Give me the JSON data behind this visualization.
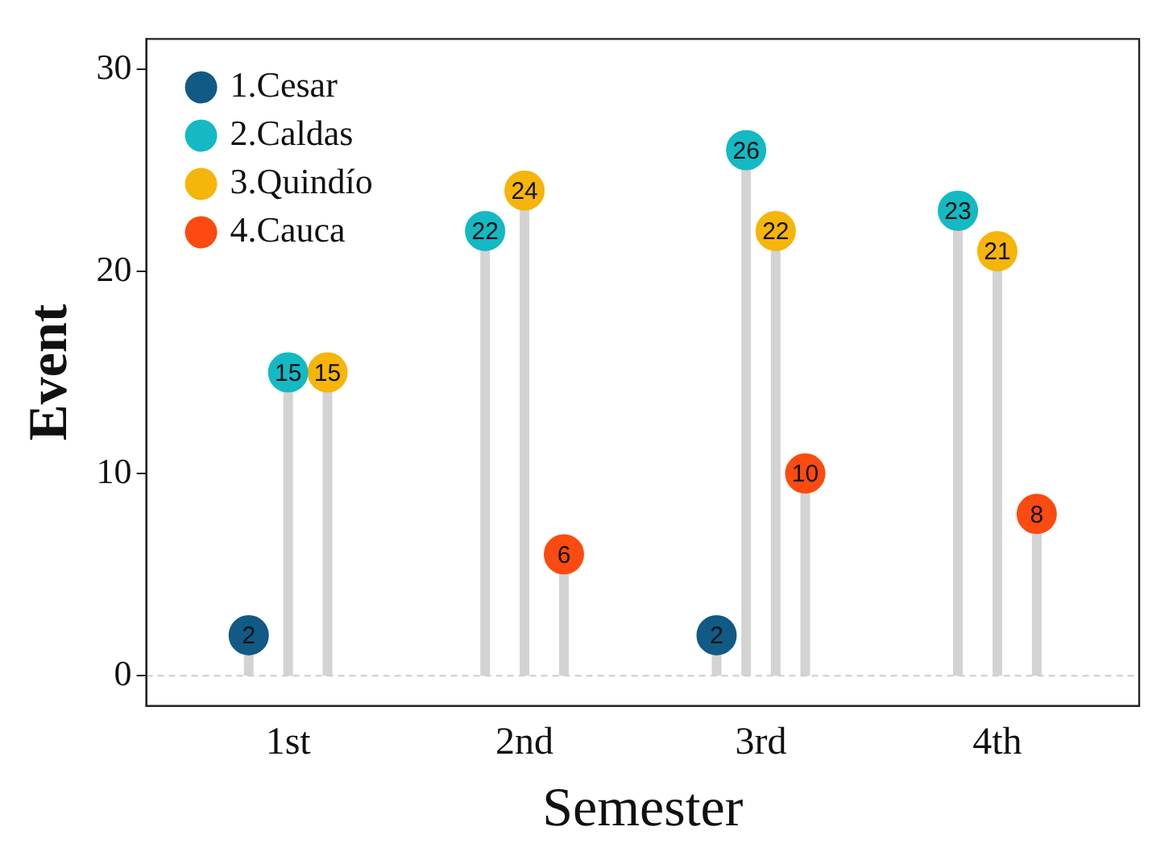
{
  "chart_data": {
    "type": "lollipop",
    "xlabel": "Semester",
    "ylabel": "Event",
    "categories": [
      "1st",
      "2nd",
      "3rd",
      "4th"
    ],
    "series": [
      {
        "name": "1.Cesar",
        "color": "#105a85",
        "values": [
          2,
          null,
          2,
          null
        ]
      },
      {
        "name": "2.Caldas",
        "color": "#14b9c4",
        "values": [
          15,
          22,
          26,
          23
        ]
      },
      {
        "name": "3.Quindío",
        "color": "#f5b50a",
        "values": [
          15,
          24,
          22,
          21
        ]
      },
      {
        "name": "4.Cauca",
        "color": "#fb4b10",
        "values": [
          null,
          6,
          10,
          8
        ]
      }
    ],
    "ylim": [
      -1.5,
      31.5
    ],
    "yticks": [
      0,
      10,
      20,
      30
    ],
    "grid": false,
    "legend": "top left",
    "marker": "circle",
    "data_labels": true,
    "ref_lines": [
      {
        "axis": "y",
        "value": 0,
        "color": "#cccccc",
        "line_style": "dashed"
      }
    ]
  }
}
